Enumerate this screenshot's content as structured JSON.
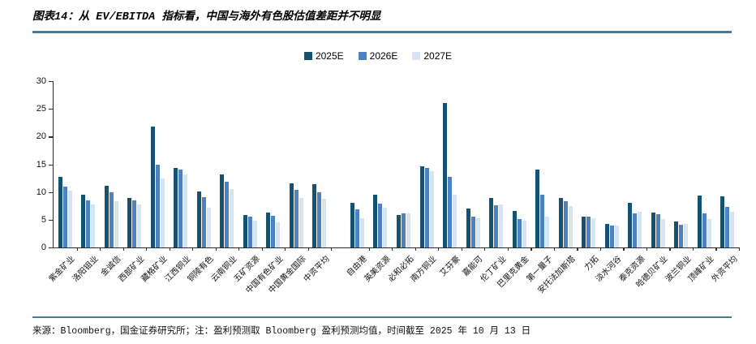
{
  "figure": {
    "title": "图表14：从 EV/EBITDA 指标看，中国与海外有色股估值差距并不明显",
    "source_note": "来源：Bloomberg，国金证券研究所；注：盈利预测取 Bloomberg 盈利预测均值，时间截至 2025 年 10 月 13 日"
  },
  "colors": {
    "series_2025E": "#155272",
    "series_2026E": "#4E81BD",
    "series_2027E": "#D6E4F2",
    "rule_line": "#3E7D99",
    "axis": "#2B2B2B"
  },
  "chart_data": {
    "type": "bar",
    "title": "",
    "xlabel": "",
    "ylabel": "",
    "ylim": [
      0,
      30
    ],
    "yticks": [
      0,
      5,
      10,
      15,
      20,
      25,
      30
    ],
    "grid": false,
    "legend_position": "top-center",
    "gap_after_index": 11,
    "categories": [
      "紫金矿业",
      "洛阳钼业",
      "金诚信",
      "西部矿业",
      "藏格矿业",
      "江西铜业",
      "铜陵有色",
      "云南铜业",
      "五矿资源",
      "中国有色矿业",
      "中国黄金国际",
      "中资平均",
      "自由港",
      "英美资源",
      "必和必拓",
      "南方铜业",
      "艾芬豪",
      "嘉能可",
      "伦丁矿业",
      "巴里克黄金",
      "第一量子",
      "安托法加斯塔",
      "力拓",
      "淡水河谷",
      "泰克资源",
      "哈德贝矿业",
      "波兰铜业",
      "顶峰矿业",
      "外资平均"
    ],
    "series": [
      {
        "name": "2025E",
        "color": "#155272",
        "values": [
          12.7,
          9.5,
          11.1,
          9.0,
          21.8,
          14.4,
          10.1,
          13.2,
          5.9,
          6.3,
          11.6,
          11.4,
          8.1,
          9.5,
          5.8,
          14.6,
          26.1,
          7.0,
          8.9,
          6.6,
          14.1,
          8.9,
          5.6,
          4.2,
          8.0,
          6.3,
          4.7,
          9.3,
          9.2
        ]
      },
      {
        "name": "2026E",
        "color": "#4E81BD",
        "values": [
          11.0,
          8.5,
          9.9,
          8.5,
          14.9,
          14.1,
          9.1,
          11.8,
          5.5,
          5.7,
          10.4,
          9.9,
          6.9,
          7.9,
          6.1,
          14.4,
          12.7,
          5.6,
          7.6,
          5.1,
          9.5,
          8.3,
          5.5,
          4.0,
          6.1,
          6.0,
          4.1,
          6.2,
          7.3
        ]
      },
      {
        "name": "2027E",
        "color": "#D6E4F2",
        "values": [
          10.3,
          7.7,
          8.3,
          7.8,
          12.4,
          13.1,
          7.2,
          10.6,
          4.9,
          4.6,
          9.0,
          8.8,
          5.2,
          7.2,
          6.2,
          13.8,
          9.5,
          5.2,
          7.8,
          4.9,
          5.5,
          7.5,
          5.3,
          3.9,
          6.4,
          5.1,
          4.2,
          5.1,
          6.4
        ]
      }
    ]
  }
}
